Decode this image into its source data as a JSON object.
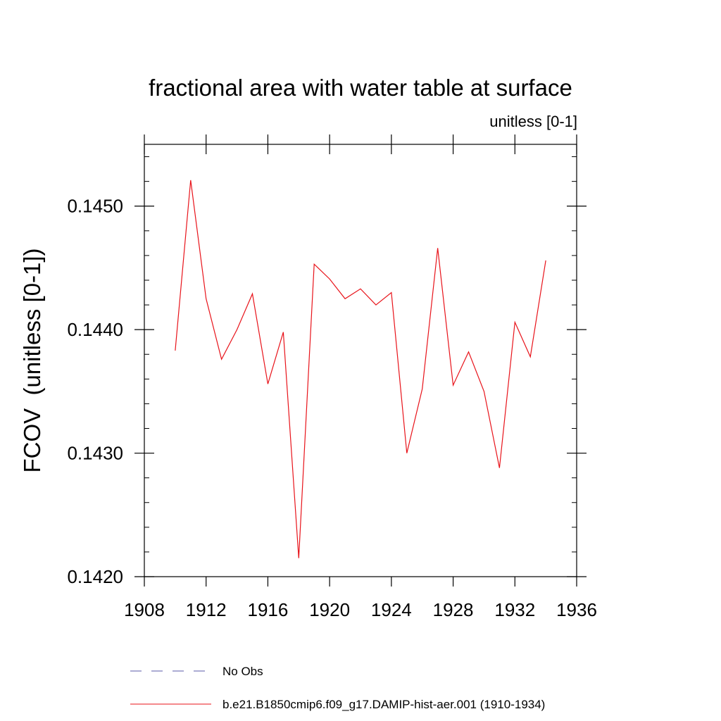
{
  "chart_data": {
    "type": "line",
    "title": "fractional area with water table at surface",
    "subtitle": "unitless [0-1]",
    "xlabel": "",
    "ylabel": "FCOV  (unitless [0-1])",
    "xlim": [
      1908,
      1936
    ],
    "ylim": [
      0.142,
      0.1455
    ],
    "x_ticks": [
      1908,
      1912,
      1916,
      1920,
      1924,
      1928,
      1932,
      1936
    ],
    "x_tick_labels": [
      "1908",
      "1912",
      "1916",
      "1920",
      "1924",
      "1928",
      "1932",
      "1936"
    ],
    "y_ticks": [
      0.142,
      0.143,
      0.144,
      0.145
    ],
    "y_tick_labels": [
      "0.1420",
      "0.1430",
      "0.1440",
      "0.1450"
    ],
    "grid": false,
    "legend_position": "bottom",
    "series": [
      {
        "name": "b.e21.B1850cmip6.f09_g17.DAMIP-hist-aer.001 (1910-1934)",
        "color": "#e8131a",
        "style": "solid",
        "x": [
          1910,
          1911,
          1912,
          1913,
          1914,
          1915,
          1916,
          1917,
          1918,
          1919,
          1920,
          1921,
          1922,
          1923,
          1924,
          1925,
          1926,
          1927,
          1928,
          1929,
          1930,
          1931,
          1932,
          1933,
          1934
        ],
        "values": [
          0.14383,
          0.14521,
          0.14425,
          0.14376,
          0.144,
          0.14429,
          0.14356,
          0.14398,
          0.14215,
          0.14453,
          0.14441,
          0.14425,
          0.14433,
          0.1442,
          0.1443,
          0.143,
          0.14352,
          0.14466,
          0.14355,
          0.14382,
          0.1435,
          0.14288,
          0.14406,
          0.14378,
          0.14456
        ]
      }
    ],
    "legend": [
      {
        "label": "No Obs",
        "color": "#5a5aa8",
        "style": "dashed"
      },
      {
        "label": "b.e21.B1850cmip6.f09_g17.DAMIP-hist-aer.001 (1910-1934)",
        "color": "#e8131a",
        "style": "solid"
      }
    ]
  }
}
